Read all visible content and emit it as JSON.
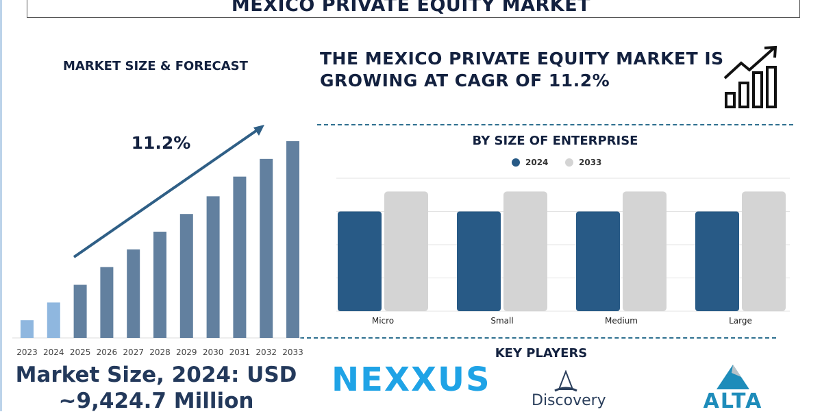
{
  "title": "MEXICO PRIVATE EQUITY MARKET",
  "left_heading": "MARKET SIZE & FORECAST",
  "headline": "THE MEXICO PRIVATE EQUITY MARKET IS GROWING AT CAGR OF 11.2%",
  "market_size_line1": "Market Size, 2024: USD",
  "market_size_line2": "~9,424.7 Million",
  "key_players_heading": "KEY PLAYERS",
  "key_players": [
    "NEXXUS",
    "Discovery",
    "ALTA"
  ],
  "icons": [
    "growth-chart-icon"
  ],
  "chart_data": [
    {
      "type": "bar",
      "categories": [
        "2023",
        "2024",
        "2025",
        "2026",
        "2027",
        "2028",
        "2029",
        "2030",
        "2031",
        "2032",
        "2033"
      ],
      "values": [
        9,
        18,
        27,
        36,
        45,
        54,
        63,
        72,
        82,
        91,
        100
      ],
      "annotation": "11.2%",
      "colors": {
        "historic": "#8fb7df",
        "forecast": "#62809f",
        "arrow": "#2f5f86"
      }
    },
    {
      "type": "bar",
      "title": "BY SIZE OF ENTERPRISE",
      "categories": [
        "Micro",
        "Small",
        "Medium",
        "Large"
      ],
      "series": [
        {
          "name": "2024",
          "values": [
            3.0,
            3.0,
            3.0,
            3.0
          ],
          "color": "#285a86"
        },
        {
          "name": "2033",
          "values": [
            3.6,
            3.6,
            3.6,
            3.6
          ],
          "color": "#d4d4d4"
        }
      ],
      "ylim": [
        0,
        4
      ],
      "grid": true,
      "legend": "top"
    }
  ]
}
